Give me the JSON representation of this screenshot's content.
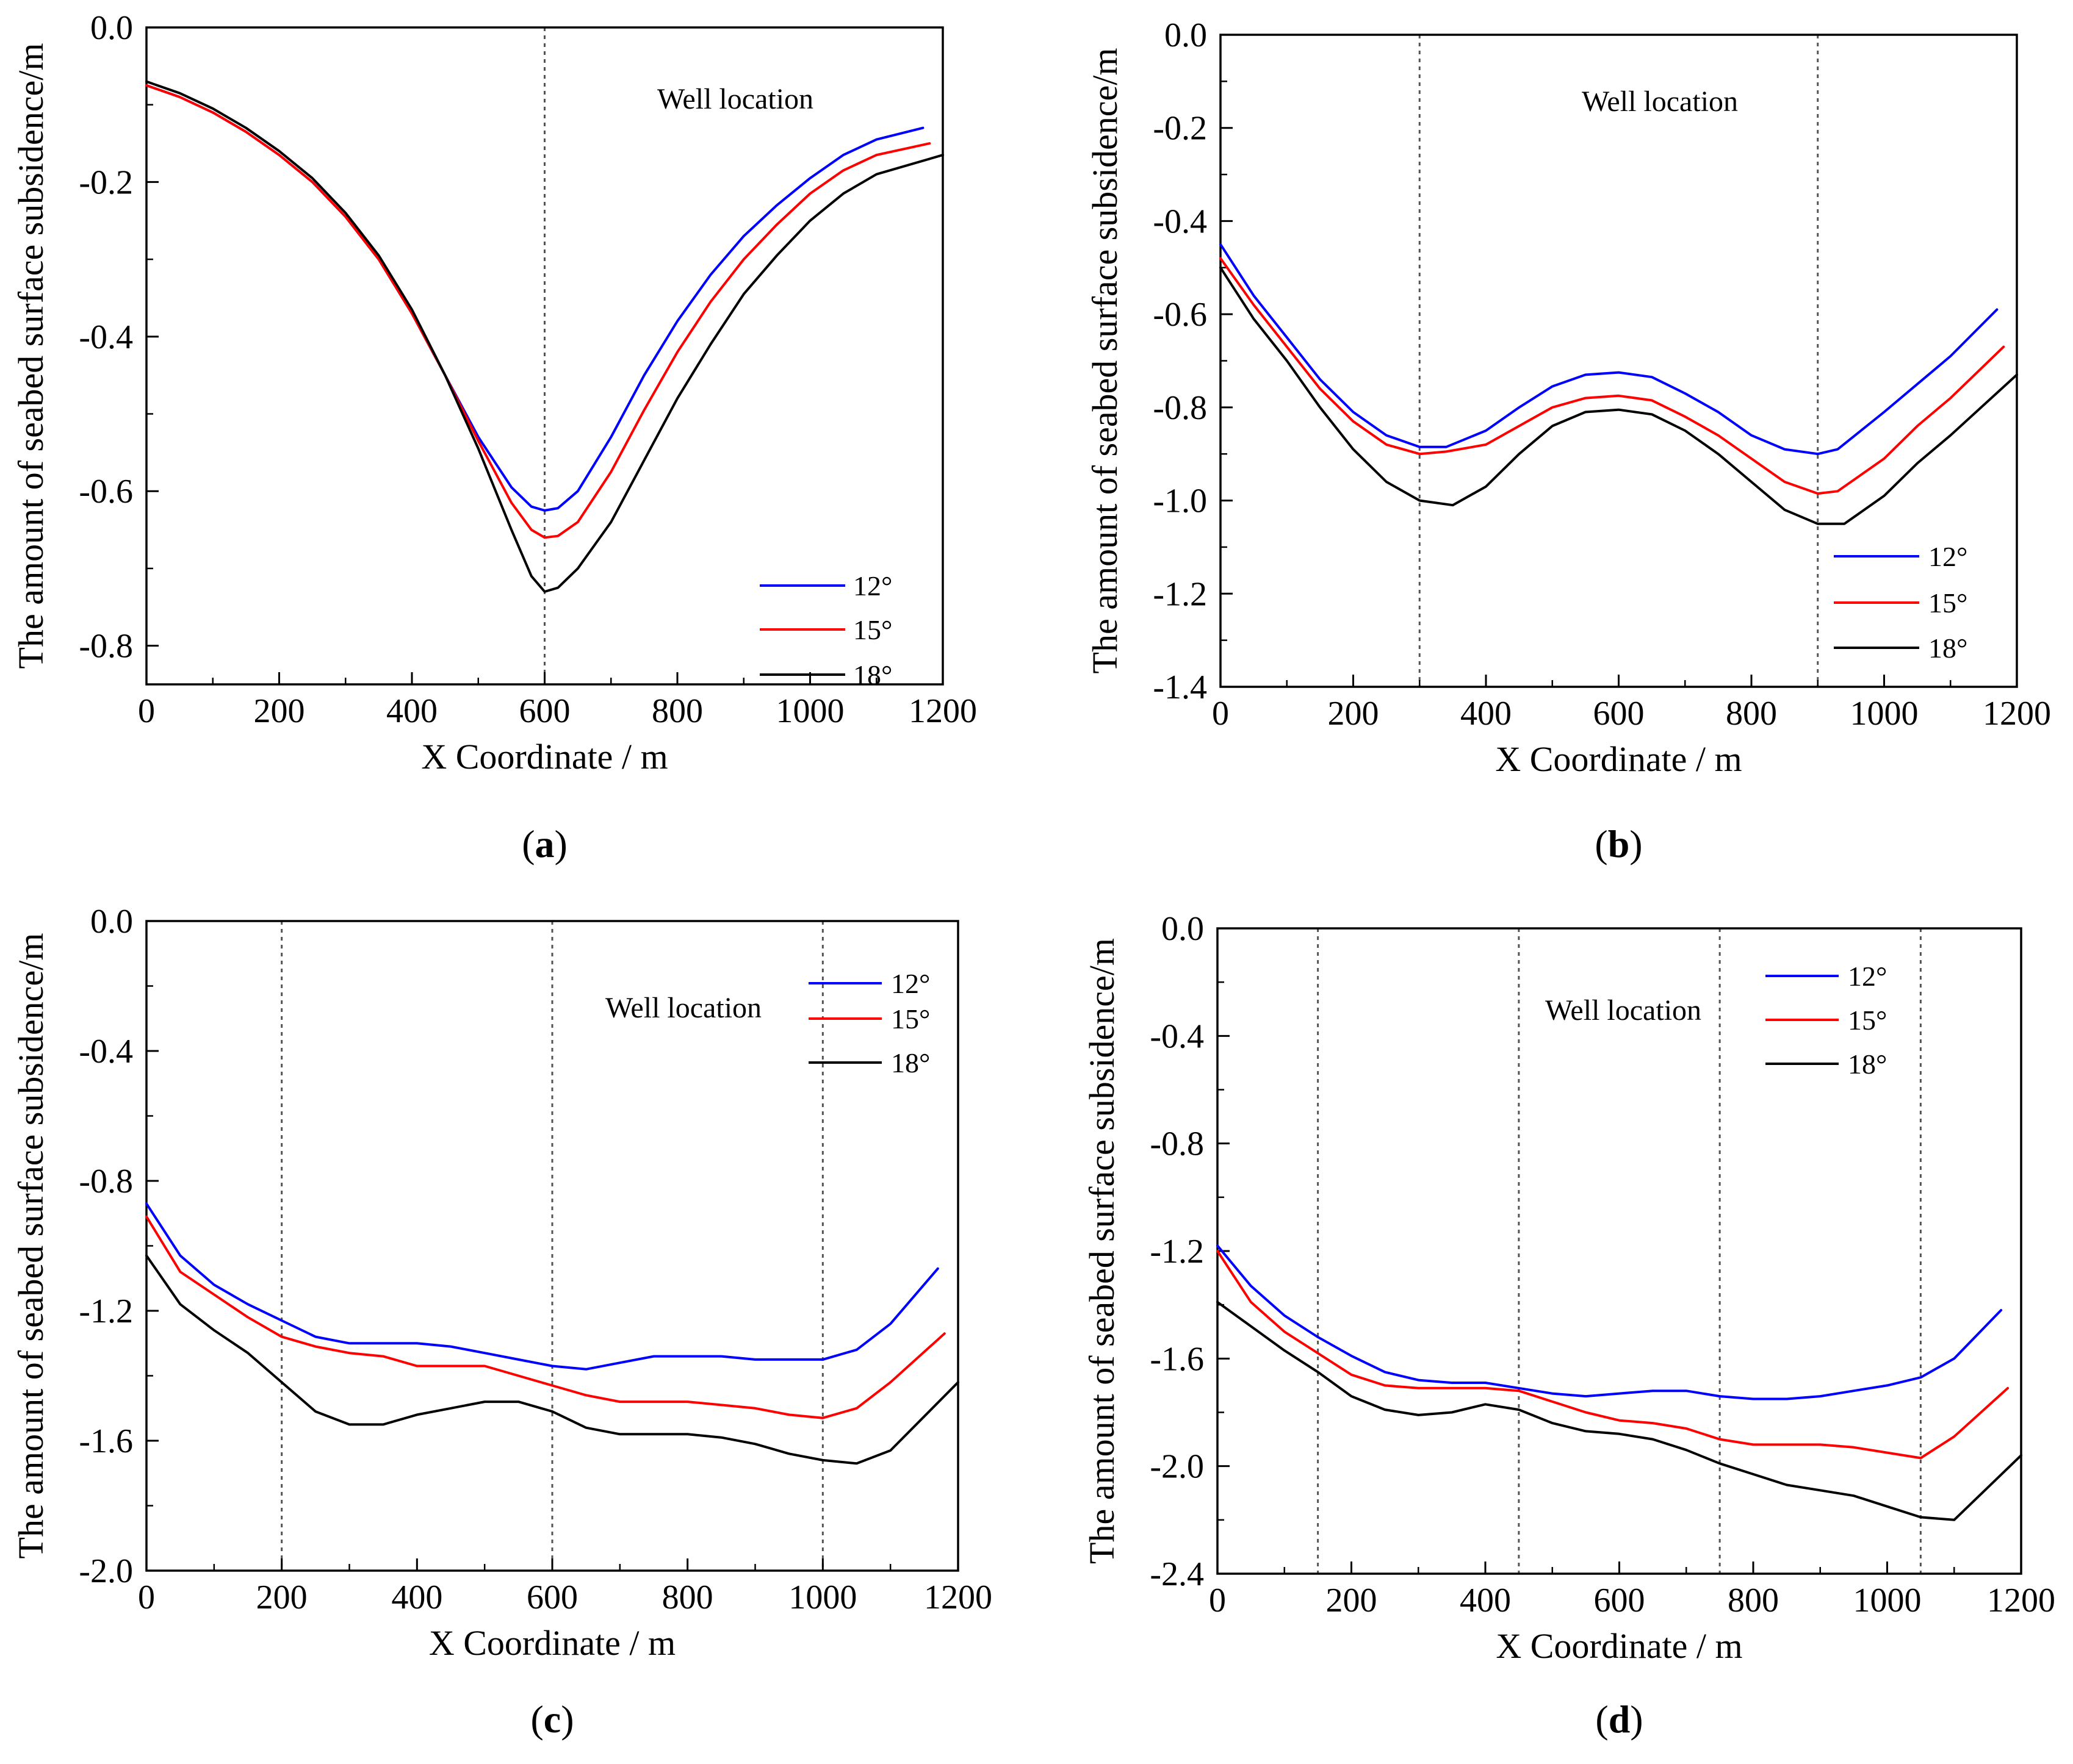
{
  "chart_data": [
    {
      "type": "line",
      "panel": "(a)",
      "panel_letter": "a",
      "xlabel": "X Coordinate / m",
      "ylabel": "The amount of seabed surface subsidence/m",
      "xlim": [
        0,
        1200
      ],
      "ylim": [
        -0.85,
        0.0
      ],
      "xticks": [
        0,
        200,
        400,
        600,
        800,
        1000,
        1200
      ],
      "xtick_labels": [
        "0",
        "200",
        "400",
        "600",
        "800",
        "1000",
        "1200"
      ],
      "yticks": [
        0.0,
        -0.2,
        -0.4,
        -0.6,
        -0.8
      ],
      "ytick_labels": [
        "0.0",
        "-0.2",
        "-0.4",
        "-0.6",
        "-0.8"
      ],
      "annotation": "Well location",
      "well_lines": [
        600
      ],
      "legend": [
        "12°",
        "15°",
        "18°"
      ],
      "series": [
        {
          "name": "12°",
          "color": "#0000ff",
          "x": [
            0,
            50,
            100,
            150,
            200,
            250,
            300,
            350,
            400,
            450,
            500,
            550,
            580,
            600,
            620,
            650,
            700,
            750,
            800,
            850,
            900,
            950,
            1000,
            1050,
            1100,
            1170
          ],
          "y": [
            -0.075,
            -0.09,
            -0.11,
            -0.135,
            -0.165,
            -0.2,
            -0.245,
            -0.3,
            -0.37,
            -0.45,
            -0.53,
            -0.595,
            -0.62,
            -0.625,
            -0.622,
            -0.6,
            -0.53,
            -0.45,
            -0.38,
            -0.32,
            -0.27,
            -0.23,
            -0.195,
            -0.165,
            -0.145,
            -0.13
          ]
        },
        {
          "name": "15°",
          "color": "#ff0000",
          "x": [
            0,
            50,
            100,
            150,
            200,
            250,
            300,
            350,
            400,
            450,
            500,
            550,
            580,
            600,
            620,
            650,
            700,
            750,
            800,
            850,
            900,
            950,
            1000,
            1050,
            1100,
            1180
          ],
          "y": [
            -0.075,
            -0.09,
            -0.11,
            -0.135,
            -0.165,
            -0.2,
            -0.245,
            -0.3,
            -0.37,
            -0.45,
            -0.535,
            -0.615,
            -0.65,
            -0.66,
            -0.658,
            -0.64,
            -0.575,
            -0.495,
            -0.42,
            -0.355,
            -0.3,
            -0.255,
            -0.215,
            -0.185,
            -0.165,
            -0.15
          ]
        },
        {
          "name": "18°",
          "color": "#000000",
          "x": [
            0,
            50,
            100,
            150,
            200,
            250,
            300,
            350,
            400,
            450,
            500,
            550,
            580,
            600,
            620,
            650,
            700,
            750,
            800,
            850,
            900,
            950,
            1000,
            1050,
            1100,
            1200
          ],
          "y": [
            -0.07,
            -0.085,
            -0.105,
            -0.13,
            -0.16,
            -0.195,
            -0.24,
            -0.295,
            -0.365,
            -0.45,
            -0.545,
            -0.65,
            -0.71,
            -0.73,
            -0.725,
            -0.7,
            -0.64,
            -0.56,
            -0.48,
            -0.41,
            -0.345,
            -0.295,
            -0.25,
            -0.215,
            -0.19,
            -0.165
          ]
        }
      ]
    },
    {
      "type": "line",
      "panel": "(b)",
      "panel_letter": "b",
      "xlabel": "X Coordinate / m",
      "ylabel": "The amount of seabed surface subsidence/m",
      "xlim": [
        0,
        1200
      ],
      "ylim": [
        -1.4,
        0.0
      ],
      "xticks": [
        0,
        200,
        400,
        600,
        800,
        1000,
        1200
      ],
      "xtick_labels": [
        "0",
        "200",
        "400",
        "600",
        "800",
        "1000",
        "1200"
      ],
      "yticks": [
        0.0,
        -0.2,
        -0.4,
        -0.6,
        -0.8,
        -1.0,
        -1.2,
        -1.4
      ],
      "ytick_labels": [
        "0.0",
        "-0.2",
        "-0.4",
        "-0.6",
        "-0.8",
        "-1.0",
        "-1.2",
        "-1.4"
      ],
      "annotation": "Well location",
      "well_lines": [
        300,
        900
      ],
      "legend": [
        "12°",
        "15°",
        "18°"
      ],
      "series": [
        {
          "name": "12°",
          "color": "#0000ff",
          "x": [
            0,
            50,
            100,
            150,
            200,
            250,
            300,
            340,
            400,
            450,
            500,
            550,
            600,
            650,
            700,
            750,
            800,
            850,
            900,
            930,
            1000,
            1050,
            1100,
            1170
          ],
          "y": [
            -0.45,
            -0.56,
            -0.65,
            -0.74,
            -0.81,
            -0.86,
            -0.885,
            -0.885,
            -0.85,
            -0.8,
            -0.755,
            -0.73,
            -0.725,
            -0.735,
            -0.77,
            -0.81,
            -0.86,
            -0.89,
            -0.9,
            -0.89,
            -0.81,
            -0.75,
            -0.69,
            -0.59
          ]
        },
        {
          "name": "15°",
          "color": "#ff0000",
          "x": [
            0,
            50,
            100,
            150,
            200,
            250,
            300,
            340,
            400,
            450,
            500,
            550,
            600,
            650,
            700,
            750,
            800,
            850,
            900,
            930,
            1000,
            1050,
            1100,
            1180
          ],
          "y": [
            -0.48,
            -0.58,
            -0.67,
            -0.76,
            -0.83,
            -0.88,
            -0.9,
            -0.895,
            -0.88,
            -0.84,
            -0.8,
            -0.78,
            -0.775,
            -0.785,
            -0.82,
            -0.86,
            -0.91,
            -0.96,
            -0.985,
            -0.98,
            -0.91,
            -0.84,
            -0.78,
            -0.67
          ]
        },
        {
          "name": "18°",
          "color": "#000000",
          "x": [
            0,
            50,
            100,
            150,
            200,
            250,
            300,
            350,
            400,
            450,
            500,
            550,
            600,
            650,
            700,
            750,
            800,
            850,
            900,
            940,
            1000,
            1050,
            1100,
            1200
          ],
          "y": [
            -0.5,
            -0.61,
            -0.7,
            -0.8,
            -0.89,
            -0.96,
            -1.0,
            -1.01,
            -0.97,
            -0.9,
            -0.84,
            -0.81,
            -0.805,
            -0.815,
            -0.85,
            -0.9,
            -0.96,
            -1.02,
            -1.05,
            -1.05,
            -0.99,
            -0.92,
            -0.86,
            -0.73
          ]
        }
      ]
    },
    {
      "type": "line",
      "panel": "(c)",
      "panel_letter": "c",
      "xlabel": "X Coordinate / m",
      "ylabel": "The amount of seabed surface subsidence/m",
      "xlim": [
        0,
        1200
      ],
      "ylim": [
        -2.0,
        0.0
      ],
      "xticks": [
        0,
        200,
        400,
        600,
        800,
        1000,
        1200
      ],
      "xtick_labels": [
        "0",
        "200",
        "400",
        "600",
        "800",
        "1000",
        "1200"
      ],
      "yticks": [
        0.0,
        -0.4,
        -0.8,
        -1.2,
        -1.6,
        -2.0
      ],
      "ytick_labels": [
        "0.0",
        "-0.4",
        "-0.8",
        "-1.2",
        "-1.6",
        "-2.0"
      ],
      "annotation": "Well location",
      "well_lines": [
        200,
        600,
        1000
      ],
      "legend": [
        "12°",
        "15°",
        "18°"
      ],
      "series": [
        {
          "name": "12°",
          "color": "#0000ff",
          "x": [
            0,
            50,
            100,
            150,
            200,
            250,
            300,
            350,
            400,
            450,
            500,
            550,
            600,
            650,
            700,
            750,
            800,
            850,
            900,
            950,
            1000,
            1050,
            1100,
            1170
          ],
          "y": [
            -0.87,
            -1.03,
            -1.12,
            -1.18,
            -1.23,
            -1.28,
            -1.3,
            -1.3,
            -1.3,
            -1.31,
            -1.33,
            -1.35,
            -1.37,
            -1.38,
            -1.36,
            -1.34,
            -1.34,
            -1.34,
            -1.35,
            -1.35,
            -1.35,
            -1.32,
            -1.24,
            -1.07
          ]
        },
        {
          "name": "15°",
          "color": "#ff0000",
          "x": [
            0,
            50,
            100,
            150,
            200,
            250,
            300,
            350,
            400,
            450,
            500,
            550,
            600,
            650,
            700,
            750,
            800,
            850,
            900,
            950,
            1000,
            1050,
            1100,
            1180
          ],
          "y": [
            -0.91,
            -1.08,
            -1.15,
            -1.22,
            -1.28,
            -1.31,
            -1.33,
            -1.34,
            -1.37,
            -1.37,
            -1.37,
            -1.4,
            -1.43,
            -1.46,
            -1.48,
            -1.48,
            -1.48,
            -1.49,
            -1.5,
            -1.52,
            -1.53,
            -1.5,
            -1.42,
            -1.27
          ]
        },
        {
          "name": "18°",
          "color": "#000000",
          "x": [
            0,
            50,
            100,
            150,
            200,
            250,
            300,
            350,
            400,
            450,
            500,
            550,
            600,
            650,
            700,
            750,
            800,
            850,
            900,
            950,
            1000,
            1050,
            1100,
            1200
          ],
          "y": [
            -1.03,
            -1.18,
            -1.26,
            -1.33,
            -1.42,
            -1.51,
            -1.55,
            -1.55,
            -1.52,
            -1.5,
            -1.48,
            -1.48,
            -1.51,
            -1.56,
            -1.58,
            -1.58,
            -1.58,
            -1.59,
            -1.61,
            -1.64,
            -1.66,
            -1.67,
            -1.63,
            -1.42
          ]
        }
      ]
    },
    {
      "type": "line",
      "panel": "(d)",
      "panel_letter": "d",
      "xlabel": "X Coordinate / m",
      "ylabel": "The amount of seabed surface subsidence/m",
      "xlim": [
        0,
        1200
      ],
      "ylim": [
        -2.4,
        0.0
      ],
      "xticks": [
        0,
        200,
        400,
        600,
        800,
        1000,
        1200
      ],
      "xtick_labels": [
        "0",
        "200",
        "400",
        "600",
        "800",
        "1000",
        "1200"
      ],
      "yticks": [
        0.0,
        -0.4,
        -0.8,
        -1.2,
        -1.6,
        -2.0,
        -2.4
      ],
      "ytick_labels": [
        "0.0",
        "-0.4",
        "-0.8",
        "-1.2",
        "-1.6",
        "-2.0",
        "-2.4"
      ],
      "annotation": "Well location",
      "well_lines": [
        150,
        450,
        750,
        1050
      ],
      "legend": [
        "12°",
        "15°",
        "18°"
      ],
      "series": [
        {
          "name": "12°",
          "color": "#0000ff",
          "x": [
            0,
            50,
            100,
            150,
            200,
            250,
            300,
            350,
            400,
            450,
            500,
            550,
            600,
            650,
            700,
            750,
            800,
            850,
            900,
            950,
            1000,
            1050,
            1100,
            1170
          ],
          "y": [
            -1.18,
            -1.33,
            -1.44,
            -1.52,
            -1.59,
            -1.65,
            -1.68,
            -1.69,
            -1.69,
            -1.71,
            -1.73,
            -1.74,
            -1.73,
            -1.72,
            -1.72,
            -1.74,
            -1.75,
            -1.75,
            -1.74,
            -1.72,
            -1.7,
            -1.67,
            -1.6,
            -1.42
          ]
        },
        {
          "name": "15°",
          "color": "#ff0000",
          "x": [
            0,
            50,
            100,
            150,
            200,
            250,
            300,
            350,
            400,
            450,
            500,
            550,
            600,
            650,
            700,
            750,
            800,
            850,
            900,
            950,
            1000,
            1050,
            1100,
            1180
          ],
          "y": [
            -1.2,
            -1.39,
            -1.5,
            -1.58,
            -1.66,
            -1.7,
            -1.71,
            -1.71,
            -1.71,
            -1.72,
            -1.76,
            -1.8,
            -1.83,
            -1.84,
            -1.86,
            -1.9,
            -1.92,
            -1.92,
            -1.92,
            -1.93,
            -1.95,
            -1.97,
            -1.89,
            -1.71
          ]
        },
        {
          "name": "18°",
          "color": "#000000",
          "x": [
            0,
            50,
            100,
            150,
            200,
            250,
            300,
            350,
            400,
            450,
            500,
            550,
            600,
            650,
            700,
            750,
            800,
            850,
            900,
            950,
            1000,
            1050,
            1100,
            1200
          ],
          "y": [
            -1.39,
            -1.48,
            -1.57,
            -1.65,
            -1.74,
            -1.79,
            -1.81,
            -1.8,
            -1.77,
            -1.79,
            -1.84,
            -1.87,
            -1.88,
            -1.9,
            -1.94,
            -1.99,
            -2.03,
            -2.07,
            -2.09,
            -2.11,
            -2.15,
            -2.19,
            -2.2,
            -1.96
          ]
        }
      ]
    }
  ]
}
